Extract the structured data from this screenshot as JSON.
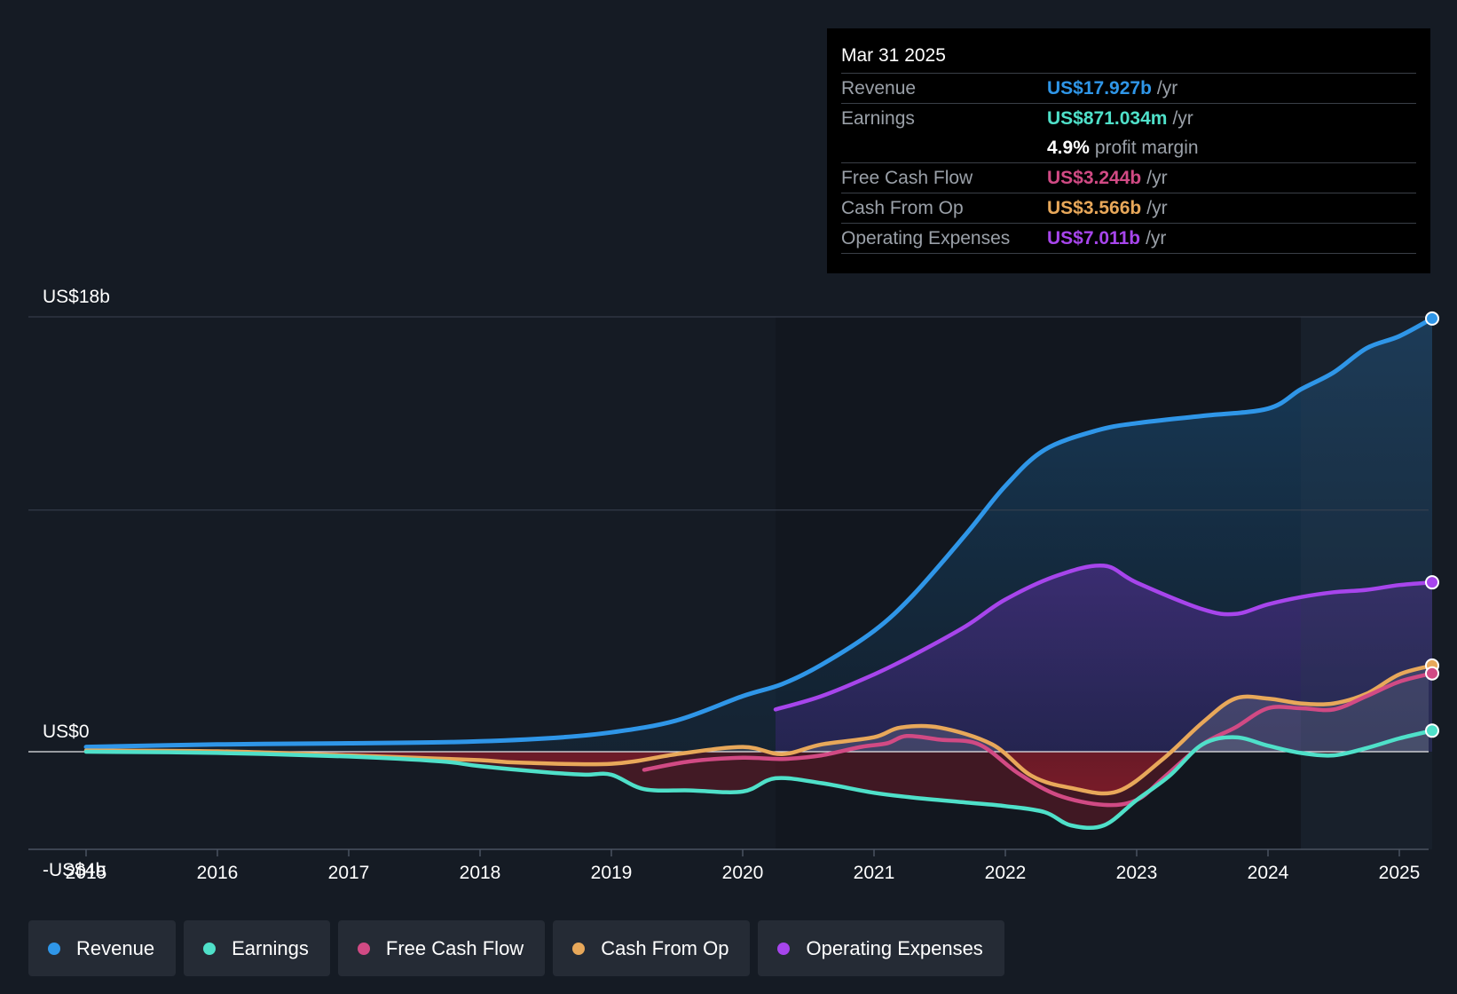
{
  "chart_data": {
    "type": "area",
    "x_range": [
      2014.55,
      2025.25
    ],
    "y_range": [
      -4.5,
      18
    ],
    "y_tick_labels": [
      {
        "value": 18,
        "label": "US$18b"
      },
      {
        "value": 0,
        "label": "US$0"
      },
      {
        "value": -4,
        "label": "-US$4b"
      }
    ],
    "gridlines": [
      18,
      10
    ],
    "x_ticks": [
      2015,
      2016,
      2017,
      2018,
      2019,
      2020,
      2021,
      2022,
      2023,
      2024,
      2025
    ],
    "x_tick_labels": [
      "2015",
      "2016",
      "2017",
      "2018",
      "2019",
      "2020",
      "2021",
      "2022",
      "2023",
      "2024",
      "2025"
    ],
    "forecast_shade_start": 2024.25,
    "series": [
      {
        "name": "Revenue",
        "color": "#2f96e8",
        "points": [
          [
            2015.0,
            0.2
          ],
          [
            2016.0,
            0.3
          ],
          [
            2017.0,
            0.35
          ],
          [
            2017.8,
            0.4
          ],
          [
            2018.5,
            0.55
          ],
          [
            2019.0,
            0.8
          ],
          [
            2019.5,
            1.3
          ],
          [
            2020.0,
            2.3
          ],
          [
            2020.3,
            2.8
          ],
          [
            2020.6,
            3.6
          ],
          [
            2021.0,
            5.0
          ],
          [
            2021.3,
            6.5
          ],
          [
            2021.7,
            9.0
          ],
          [
            2022.0,
            11.0
          ],
          [
            2022.3,
            12.5
          ],
          [
            2022.7,
            13.3
          ],
          [
            2023.0,
            13.6
          ],
          [
            2023.5,
            13.9
          ],
          [
            2024.0,
            14.2
          ],
          [
            2024.25,
            15.0
          ],
          [
            2024.5,
            15.7
          ],
          [
            2024.75,
            16.7
          ],
          [
            2025.0,
            17.2
          ],
          [
            2025.25,
            17.93
          ]
        ]
      },
      {
        "name": "Operating Expenses",
        "color": "#a745ec",
        "points": [
          [
            2020.25,
            1.75
          ],
          [
            2020.6,
            2.3
          ],
          [
            2021.0,
            3.2
          ],
          [
            2021.3,
            4.0
          ],
          [
            2021.7,
            5.2
          ],
          [
            2022.0,
            6.3
          ],
          [
            2022.4,
            7.3
          ],
          [
            2022.75,
            7.7
          ],
          [
            2023.0,
            7.0
          ],
          [
            2023.5,
            5.9
          ],
          [
            2023.75,
            5.7
          ],
          [
            2024.0,
            6.1
          ],
          [
            2024.25,
            6.4
          ],
          [
            2024.5,
            6.6
          ],
          [
            2024.75,
            6.7
          ],
          [
            2025.0,
            6.9
          ],
          [
            2025.25,
            7.01
          ]
        ]
      },
      {
        "name": "Cash From Op",
        "color": "#e8a85a",
        "points": [
          [
            2015.0,
            0.05
          ],
          [
            2016.0,
            0.02
          ],
          [
            2017.0,
            -0.15
          ],
          [
            2017.5,
            -0.25
          ],
          [
            2018.0,
            -0.35
          ],
          [
            2018.3,
            -0.45
          ],
          [
            2019.0,
            -0.5
          ],
          [
            2019.5,
            -0.1
          ],
          [
            2020.0,
            0.2
          ],
          [
            2020.3,
            -0.1
          ],
          [
            2020.6,
            0.3
          ],
          [
            2021.0,
            0.6
          ],
          [
            2021.2,
            1.0
          ],
          [
            2021.5,
            1.0
          ],
          [
            2021.9,
            0.3
          ],
          [
            2022.2,
            -1.0
          ],
          [
            2022.5,
            -1.5
          ],
          [
            2022.85,
            -1.65
          ],
          [
            2023.2,
            -0.3
          ],
          [
            2023.5,
            1.2
          ],
          [
            2023.75,
            2.2
          ],
          [
            2024.0,
            2.2
          ],
          [
            2024.25,
            2.0
          ],
          [
            2024.5,
            2.0
          ],
          [
            2024.75,
            2.4
          ],
          [
            2025.0,
            3.2
          ],
          [
            2025.25,
            3.566
          ]
        ]
      },
      {
        "name": "Free Cash Flow",
        "color": "#d14a84",
        "points": [
          [
            2019.25,
            -0.75
          ],
          [
            2019.6,
            -0.4
          ],
          [
            2020.0,
            -0.25
          ],
          [
            2020.3,
            -0.3
          ],
          [
            2020.6,
            -0.15
          ],
          [
            2020.9,
            0.2
          ],
          [
            2021.1,
            0.35
          ],
          [
            2021.25,
            0.65
          ],
          [
            2021.5,
            0.5
          ],
          [
            2021.8,
            0.3
          ],
          [
            2022.1,
            -0.9
          ],
          [
            2022.4,
            -1.8
          ],
          [
            2022.75,
            -2.2
          ],
          [
            2023.0,
            -2.0
          ],
          [
            2023.2,
            -1.1
          ],
          [
            2023.5,
            0.3
          ],
          [
            2023.75,
            1.0
          ],
          [
            2024.0,
            1.8
          ],
          [
            2024.25,
            1.8
          ],
          [
            2024.5,
            1.75
          ],
          [
            2024.75,
            2.3
          ],
          [
            2025.0,
            2.9
          ],
          [
            2025.25,
            3.244
          ]
        ]
      },
      {
        "name": "Earnings",
        "color": "#4fe0c9",
        "points": [
          [
            2015.0,
            0.0
          ],
          [
            2016.0,
            -0.05
          ],
          [
            2017.0,
            -0.2
          ],
          [
            2017.7,
            -0.4
          ],
          [
            2018.0,
            -0.6
          ],
          [
            2018.5,
            -0.85
          ],
          [
            2018.8,
            -0.95
          ],
          [
            2019.0,
            -0.95
          ],
          [
            2019.25,
            -1.55
          ],
          [
            2019.6,
            -1.6
          ],
          [
            2020.0,
            -1.65
          ],
          [
            2020.25,
            -1.1
          ],
          [
            2020.6,
            -1.3
          ],
          [
            2021.0,
            -1.7
          ],
          [
            2021.3,
            -1.9
          ],
          [
            2021.7,
            -2.1
          ],
          [
            2022.0,
            -2.25
          ],
          [
            2022.3,
            -2.5
          ],
          [
            2022.5,
            -3.05
          ],
          [
            2022.75,
            -3.05
          ],
          [
            2023.0,
            -2.0
          ],
          [
            2023.25,
            -1.0
          ],
          [
            2023.5,
            0.3
          ],
          [
            2023.75,
            0.6
          ],
          [
            2024.0,
            0.25
          ],
          [
            2024.25,
            -0.05
          ],
          [
            2024.5,
            -0.15
          ],
          [
            2024.75,
            0.15
          ],
          [
            2025.0,
            0.55
          ],
          [
            2025.25,
            0.871
          ]
        ]
      }
    ]
  },
  "tooltip": {
    "date": "Mar 31 2025",
    "rows": [
      {
        "label": "Revenue",
        "value": "US$17.927b",
        "unit": "/yr",
        "color": "#2f96e8"
      },
      {
        "label": "Earnings",
        "value": "US$871.034m",
        "unit": "/yr",
        "color": "#4fe0c9"
      },
      {
        "label": "Free Cash Flow",
        "value": "US$3.244b",
        "unit": "/yr",
        "color": "#d14a84"
      },
      {
        "label": "Cash From Op",
        "value": "US$3.566b",
        "unit": "/yr",
        "color": "#e8a85a"
      },
      {
        "label": "Operating Expenses",
        "value": "US$7.011b",
        "unit": "/yr",
        "color": "#a745ec"
      }
    ],
    "margin_value": "4.9%",
    "margin_label": "profit margin"
  },
  "legend": [
    {
      "label": "Revenue",
      "color": "#2f96e8"
    },
    {
      "label": "Earnings",
      "color": "#4fe0c9"
    },
    {
      "label": "Free Cash Flow",
      "color": "#d14a84"
    },
    {
      "label": "Cash From Op",
      "color": "#e8a85a"
    },
    {
      "label": "Operating Expenses",
      "color": "#a745ec"
    }
  ]
}
